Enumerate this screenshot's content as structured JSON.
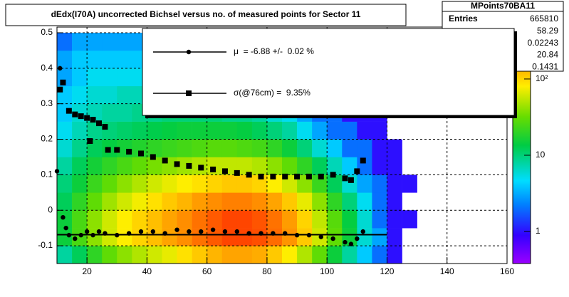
{
  "chart_data": {
    "type": "heatmap",
    "title": "dEdx(I70A) uncorrected Bichsel versus no. of measured points for Sector 11",
    "stats": {
      "name": "MPoints70BA11",
      "entries_label": "Entries",
      "values": [
        665810,
        58.29,
        0.02243,
        20.84,
        0.1431
      ]
    },
    "xlim": [
      10,
      160
    ],
    "ylim": [
      -0.15,
      0.516
    ],
    "xticks": [
      20,
      40,
      60,
      80,
      100,
      120,
      140,
      160
    ],
    "yticks": [
      -0.1,
      0,
      0.1,
      0.2,
      0.3,
      0.4,
      0.5
    ],
    "grid": true,
    "log_z": true,
    "zlim": [
      0.38,
      480
    ],
    "zticks": [
      1,
      10,
      {
        "value": 100,
        "label": "10²"
      }
    ],
    "xbins": [
      10,
      15,
      20,
      25,
      30,
      35,
      40,
      45,
      50,
      55,
      60,
      65,
      70,
      75,
      80,
      85,
      90,
      95,
      100,
      105,
      110,
      115,
      120,
      125,
      130,
      135
    ],
    "ybins": [
      -0.15,
      -0.1,
      -0.05,
      0,
      0.05,
      0.1,
      0.15,
      0.2,
      0.25,
      0.3,
      0.35,
      0.4,
      0.45,
      0.5
    ],
    "z": [
      [
        8,
        12,
        20,
        30,
        40,
        50,
        60,
        70,
        90,
        110,
        130,
        150,
        150,
        140,
        110,
        80,
        50,
        30,
        15,
        8,
        4,
        2,
        1,
        0,
        0
      ],
      [
        15,
        25,
        40,
        60,
        80,
        100,
        120,
        150,
        180,
        220,
        260,
        300,
        300,
        280,
        230,
        170,
        110,
        60,
        30,
        15,
        6,
        3,
        1,
        0,
        0
      ],
      [
        15,
        25,
        40,
        60,
        80,
        100,
        120,
        150,
        180,
        220,
        260,
        300,
        300,
        270,
        220,
        160,
        100,
        55,
        28,
        14,
        6,
        2,
        1,
        1,
        0
      ],
      [
        12,
        20,
        30,
        45,
        60,
        75,
        90,
        110,
        130,
        160,
        180,
        200,
        200,
        180,
        150,
        110,
        70,
        40,
        20,
        10,
        5,
        2,
        1,
        0,
        0
      ],
      [
        10,
        15,
        22,
        30,
        40,
        50,
        60,
        70,
        80,
        90,
        100,
        110,
        110,
        100,
        80,
        60,
        40,
        22,
        12,
        6,
        3,
        2,
        1,
        1,
        0
      ],
      [
        8,
        12,
        16,
        20,
        25,
        30,
        35,
        40,
        45,
        50,
        55,
        55,
        55,
        50,
        40,
        30,
        20,
        12,
        7,
        4,
        2,
        1,
        1,
        0,
        0
      ],
      [
        6,
        9,
        12,
        14,
        16,
        18,
        20,
        22,
        24,
        26,
        28,
        28,
        26,
        24,
        20,
        15,
        10,
        6,
        4,
        2,
        2,
        1,
        1,
        0,
        0
      ],
      [
        5,
        7,
        9,
        10,
        11,
        12,
        13,
        14,
        15,
        15,
        15,
        15,
        14,
        12,
        10,
        8,
        5,
        3,
        2,
        2,
        1,
        1,
        0,
        0,
        0
      ],
      [
        4,
        6,
        7,
        8,
        8,
        9,
        9,
        10,
        10,
        10,
        10,
        9,
        9,
        8,
        6,
        5,
        3,
        2,
        2,
        1,
        1,
        1,
        0,
        0,
        0
      ],
      [
        4,
        5,
        6,
        6,
        7,
        7,
        7,
        7,
        7,
        7,
        7,
        6,
        6,
        5,
        4,
        3,
        2,
        2,
        1,
        1,
        1,
        0,
        0,
        0,
        0
      ],
      [
        3,
        4,
        5,
        5,
        5,
        5,
        6,
        6,
        6,
        5,
        5,
        5,
        4,
        4,
        3,
        2,
        2,
        1,
        1,
        1,
        0,
        0,
        0,
        0,
        0
      ],
      [
        3,
        4,
        4,
        4,
        4,
        4,
        4,
        5,
        5,
        4,
        4,
        4,
        3,
        3,
        2,
        2,
        1,
        1,
        1,
        0,
        0,
        0,
        0,
        0,
        0
      ],
      [
        2,
        3,
        3,
        3,
        3,
        3,
        3,
        4,
        4,
        3,
        3,
        3,
        3,
        2,
        2,
        1,
        1,
        1,
        1,
        0,
        0,
        0,
        0,
        0,
        0
      ]
    ],
    "fit": {
      "value": -0.0688,
      "xrange": [
        10,
        120
      ]
    },
    "series": [
      {
        "name": "μ  = -6.88 +/-  0.02 %",
        "marker": "circle",
        "color": "#000000",
        "x": [
          10,
          11,
          12,
          13,
          14,
          16,
          18,
          20,
          22,
          24,
          26,
          30,
          34,
          38,
          42,
          46,
          50,
          54,
          58,
          62,
          66,
          70,
          74,
          78,
          82,
          86,
          90,
          94,
          98,
          102,
          106,
          108,
          110,
          112
        ],
        "values": [
          0.11,
          0.4,
          -0.02,
          -0.05,
          -0.07,
          -0.08,
          -0.07,
          -0.06,
          -0.07,
          -0.06,
          -0.065,
          -0.07,
          -0.065,
          -0.06,
          -0.06,
          -0.065,
          -0.055,
          -0.06,
          -0.06,
          -0.055,
          -0.06,
          -0.06,
          -0.065,
          -0.065,
          -0.065,
          -0.065,
          -0.07,
          -0.07,
          -0.075,
          -0.08,
          -0.09,
          -0.095,
          -0.08,
          -0.06
        ]
      },
      {
        "name": "σ(@76cm) =  9.35%",
        "marker": "square",
        "color": "#000000",
        "x": [
          11,
          12,
          14,
          16,
          18,
          20,
          21,
          22,
          24,
          26,
          27,
          30,
          34,
          38,
          42,
          46,
          50,
          54,
          58,
          62,
          66,
          70,
          74,
          78,
          82,
          86,
          90,
          94,
          98,
          102,
          106,
          108,
          110,
          112
        ],
        "values": [
          0.34,
          0.36,
          0.28,
          0.27,
          0.265,
          0.26,
          0.195,
          0.255,
          0.245,
          0.235,
          0.17,
          0.17,
          0.165,
          0.16,
          0.15,
          0.14,
          0.13,
          0.125,
          0.12,
          0.115,
          0.11,
          0.105,
          0.1,
          0.095,
          0.095,
          0.095,
          0.095,
          0.095,
          0.095,
          0.1,
          0.09,
          0.085,
          0.11,
          0.14
        ]
      }
    ]
  }
}
